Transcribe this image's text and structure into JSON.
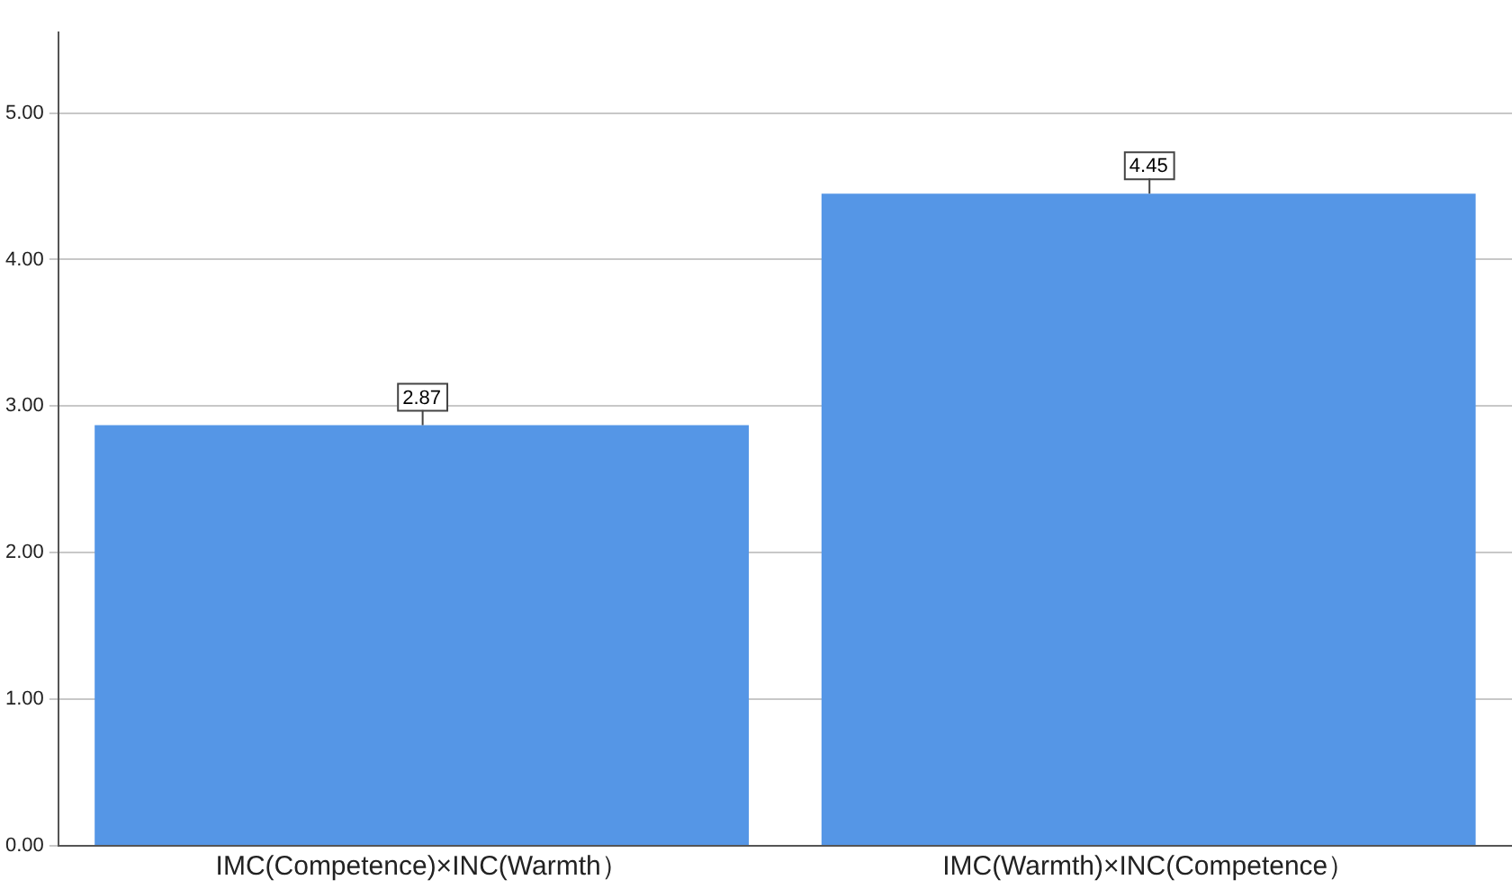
{
  "chart_data": {
    "type": "bar",
    "categories": [
      "IMC(Competence)×INC(Warmth）",
      "IMC(Warmth)×INC(Competence）"
    ],
    "values": [
      2.87,
      4.45
    ],
    "color": "#5596e6",
    "ylim": [
      0,
      5.55
    ],
    "yticks": [
      {
        "value": 0,
        "label": "0.00"
      },
      {
        "value": 1,
        "label": "1.00"
      },
      {
        "value": 2,
        "label": "2.00"
      },
      {
        "value": 3,
        "label": "3.00"
      },
      {
        "value": 4,
        "label": "4.00"
      },
      {
        "value": 5,
        "label": "5.00"
      }
    ],
    "grid": "y",
    "data_labels": true
  }
}
